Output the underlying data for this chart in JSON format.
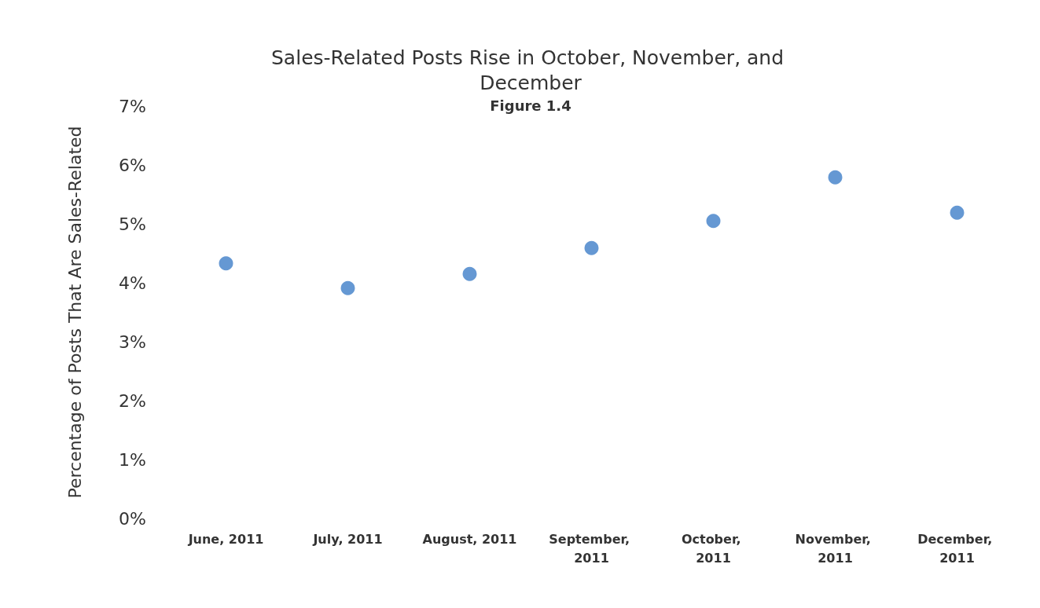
{
  "chart_data": {
    "type": "scatter",
    "title": "Sales-Related Posts Rise in October, November, and December",
    "subtitle": "Figure 1.4",
    "ylabel": "Percentage of Posts That Are Sales-Related",
    "categories": [
      "June, 2011",
      "July, 2011",
      "August, 2011",
      "September, 2011",
      "October, 2011",
      "November, 2011",
      "December, 2011"
    ],
    "series": [
      {
        "color": "#3e7ec8",
        "values": [
          4.33,
          3.91,
          4.15,
          4.59,
          5.05,
          5.79,
          5.19
        ]
      }
    ],
    "ylim": [
      0,
      7
    ],
    "yticks": [
      {
        "value": 0,
        "label": "0%"
      },
      {
        "value": 1,
        "label": "1%"
      },
      {
        "value": 2,
        "label": "2%"
      },
      {
        "value": 3,
        "label": "3%"
      },
      {
        "value": 4,
        "label": "4%"
      },
      {
        "value": 5,
        "label": "5%"
      },
      {
        "value": 6,
        "label": "6%"
      },
      {
        "value": 7,
        "label": "7%"
      }
    ],
    "grid": false,
    "marker": "circle"
  }
}
